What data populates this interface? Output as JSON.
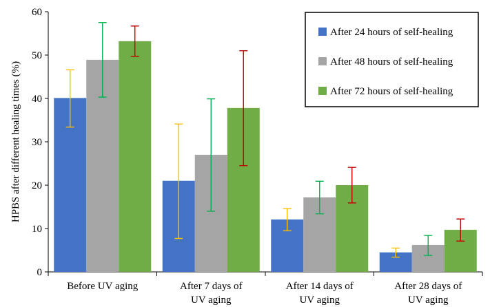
{
  "chart_data": {
    "type": "bar",
    "title": "",
    "xlabel": "",
    "ylabel": "HPBS after different healing times (%)",
    "ylim": [
      0,
      60
    ],
    "yticks": [
      0,
      10,
      20,
      30,
      40,
      50,
      60
    ],
    "grid": false,
    "legend_position": "top-right",
    "categories": [
      [
        "Before UV aging"
      ],
      [
        "After 7 days of",
        "UV aging"
      ],
      [
        "After 14 days of",
        "UV aging"
      ],
      [
        "After 28 days of",
        "UV aging"
      ]
    ],
    "series": [
      {
        "name": "After 24 hours of self-healing",
        "color": "#4472C4",
        "error_color": "#FFC000",
        "values": [
          40.1,
          21.0,
          12.1,
          4.5
        ],
        "err_low": [
          33.4,
          7.7,
          9.5,
          3.4
        ],
        "err_high": [
          46.6,
          34.1,
          14.6,
          5.5
        ]
      },
      {
        "name": "After 48 hours of self-healing",
        "color": "#A5A5A5",
        "error_color": "#00B050",
        "values": [
          48.9,
          27.0,
          17.2,
          6.2
        ],
        "err_low": [
          40.3,
          14.0,
          13.4,
          3.8
        ],
        "err_high": [
          57.5,
          39.9,
          20.9,
          8.4
        ]
      },
      {
        "name": "After 72 hours of self-healing",
        "color": "#70AD47",
        "error_color": "#C00000",
        "values": [
          53.2,
          37.8,
          20.0,
          9.7
        ],
        "err_low": [
          49.7,
          24.5,
          15.9,
          7.1
        ],
        "err_high": [
          56.7,
          51.0,
          24.1,
          12.2
        ]
      }
    ]
  }
}
